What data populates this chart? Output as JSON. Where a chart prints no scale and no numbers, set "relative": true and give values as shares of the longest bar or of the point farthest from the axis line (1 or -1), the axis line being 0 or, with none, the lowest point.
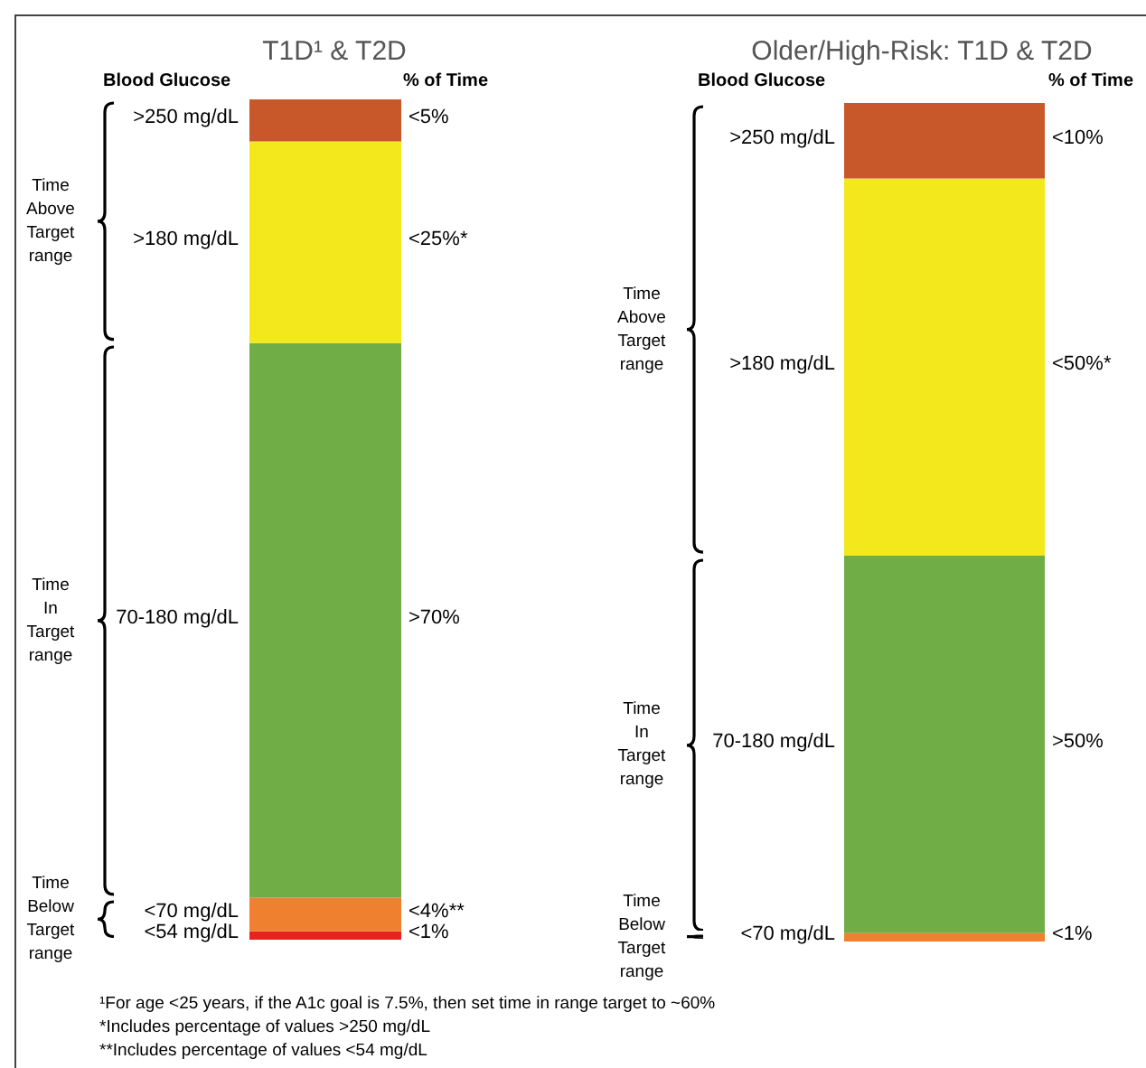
{
  "chart_data": [
    {
      "type": "bar",
      "title": "T1D¹ & T2D",
      "stacked": true,
      "relative": true,
      "categories": [
        null
      ],
      "series": [
        {
          "name": "<54 mg/dL",
          "color": "#e8231e",
          "values": [
            0.01
          ]
        },
        {
          "name": "<70 mg/dL",
          "color": "#ef8030",
          "values": [
            0.04
          ]
        },
        {
          "name": "70-180 mg/dL",
          "color": "#70ad47",
          "values": [
            0.66
          ]
        },
        {
          "name": ">180 mg/dL",
          "color": "#f2e81c",
          "values": [
            0.24
          ]
        },
        {
          "name": ">250 mg/dL",
          "color": "#c8582a",
          "values": [
            0.05
          ]
        }
      ],
      "annotations": [
        "Blood Glucose",
        "% of Time",
        "Time Above Target range",
        "Time In Target range",
        "Time Below Target range",
        "<1%",
        "<4%**",
        ">70%",
        "<25%*",
        "<5%",
        "¹For age <25 years, if the A1c goal is 7.5%, then set time in range target to ~60%",
        "*Includes percentage of values >250 mg/dL",
        "**Includes percentage of values <54 mg/dL"
      ]
    },
    {
      "type": "bar",
      "title": "Older/High-Risk: T1D & T2D",
      "stacked": true,
      "relative": true,
      "categories": [
        null
      ],
      "series": [
        {
          "name": "<70 mg/dL",
          "color": "#ef8030",
          "values": [
            0.01
          ]
        },
        {
          "name": "70-180 mg/dL",
          "color": "#70ad47",
          "values": [
            0.45
          ]
        },
        {
          "name": ">180 mg/dL",
          "color": "#f2e81c",
          "values": [
            0.45
          ]
        },
        {
          "name": ">250 mg/dL",
          "color": "#c8582a",
          "values": [
            0.09
          ]
        }
      ],
      "annotations": [
        "Blood Glucose",
        "% of Time",
        "Time Above Target range",
        "Time In Target range",
        "Time Below Target range",
        "<1%",
        ">50%",
        "<50%*",
        "<10%"
      ]
    }
  ]
}
